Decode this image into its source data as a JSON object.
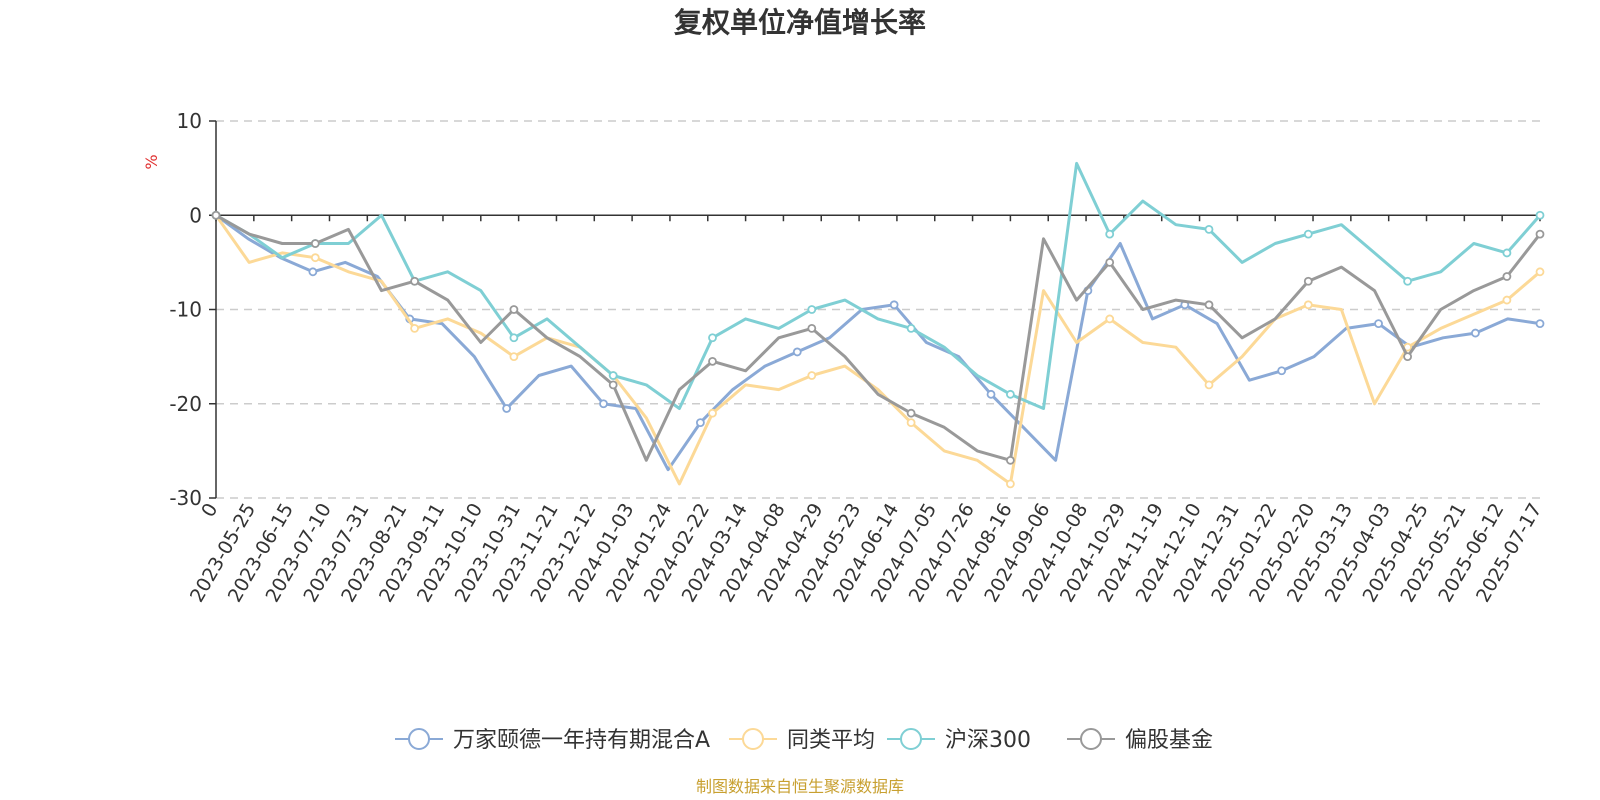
{
  "chart_data": {
    "type": "line",
    "title": "复权单位净值增长率",
    "ylabel": "%",
    "ylim": [
      -30,
      10
    ],
    "yticks": [
      10,
      0,
      -10,
      -20,
      -30
    ],
    "x_tick_labels": [
      "0",
      "2023-05-25",
      "2023-06-15",
      "2023-07-10",
      "2023-07-31",
      "2023-08-21",
      "2023-09-11",
      "2023-10-10",
      "2023-10-31",
      "2023-11-21",
      "2023-12-12",
      "2024-01-03",
      "2024-01-24",
      "2024-02-22",
      "2024-03-14",
      "2024-04-08",
      "2024-04-29",
      "2024-05-23",
      "2024-06-14",
      "2024-07-05",
      "2024-07-26",
      "2024-08-16",
      "2024-09-06",
      "2024-10-08",
      "2024-10-29",
      "2024-11-19",
      "2024-12-10",
      "2024-12-31",
      "2025-01-22",
      "2025-02-20",
      "2025-03-13",
      "2025-04-03",
      "2025-04-25",
      "2025-05-21",
      "2025-06-12",
      "2025-07-17"
    ],
    "grid": true,
    "legend_position": "bottom",
    "series": [
      {
        "name": "万家颐德一年持有期混合A",
        "color": "#8aa9d6",
        "values": [
          0,
          -2.5,
          -4.5,
          -6,
          -5,
          -6.5,
          -11,
          -11.5,
          -15,
          -20.5,
          -17,
          -16,
          -20,
          -20.5,
          -27,
          -22,
          -18.5,
          -16,
          -14.5,
          -13,
          -10,
          -9.5,
          -13.5,
          -15,
          -19,
          -22.5,
          -26,
          -8,
          -3,
          -11,
          -9.5,
          -11.5,
          -17.5,
          -16.5,
          -15,
          -12,
          -11.5,
          -14,
          -13,
          -12.5,
          -11,
          -11.5
        ]
      },
      {
        "name": "同类平均",
        "color": "#fcd997",
        "values": [
          0,
          -5,
          -4,
          -4.5,
          -6,
          -7,
          -12,
          -11,
          -12.5,
          -15,
          -13,
          -14,
          -17,
          -21.5,
          -28.5,
          -21,
          -18,
          -18.5,
          -17,
          -16,
          -18.5,
          -22,
          -25,
          -26,
          -28.5,
          -8,
          -13.5,
          -11,
          -13.5,
          -14,
          -18,
          -15,
          -11,
          -9.5,
          -10,
          -20,
          -14,
          -12,
          -10.5,
          -9,
          -6
        ]
      },
      {
        "name": "沪深300",
        "color": "#7fcfd4",
        "values": [
          0,
          -2,
          -4.5,
          -3,
          -3,
          0,
          -7,
          -6,
          -8,
          -13,
          -11,
          -14,
          -17,
          -18,
          -20.5,
          -13,
          -11,
          -12,
          -10,
          -9,
          -11,
          -12,
          -14,
          -17,
          -19,
          -20.5,
          5.5,
          -2,
          1.5,
          -1,
          -1.5,
          -5,
          -3,
          -2,
          -1,
          -4,
          -7,
          -6,
          -3,
          -4,
          0
        ]
      },
      {
        "name": "偏股基金",
        "color": "#999999",
        "values": [
          0,
          -2,
          -3,
          -3,
          -1.5,
          -8,
          -7,
          -9,
          -13.5,
          -10,
          -13,
          -15,
          -18,
          -26,
          -18.5,
          -15.5,
          -16.5,
          -13,
          -12,
          -15,
          -19,
          -21,
          -22.5,
          -25,
          -26,
          -2.5,
          -9,
          -5,
          -10,
          -9,
          -9.5,
          -13,
          -11,
          -7,
          -5.5,
          -8,
          -15,
          -10,
          -8,
          -6.5,
          -2
        ]
      }
    ],
    "source": "制图数据来自恒生聚源数据库"
  },
  "colors": {
    "axis": "#333333",
    "grid": "#cccccc",
    "ylabel": "#e03030",
    "source": "#c8a030"
  }
}
